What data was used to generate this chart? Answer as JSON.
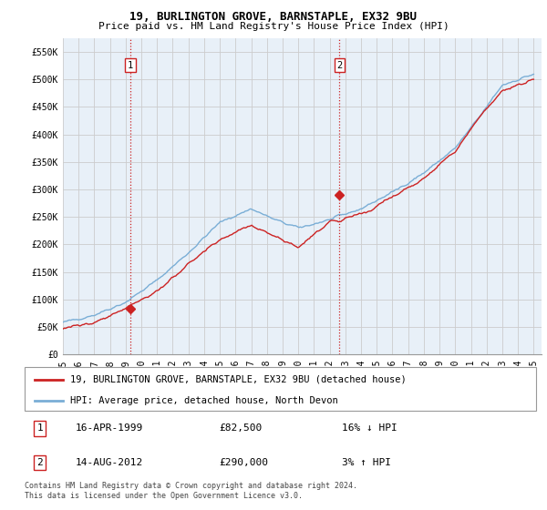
{
  "title": "19, BURLINGTON GROVE, BARNSTAPLE, EX32 9BU",
  "subtitle": "Price paid vs. HM Land Registry's House Price Index (HPI)",
  "ylabel_ticks": [
    "£0",
    "£50K",
    "£100K",
    "£150K",
    "£200K",
    "£250K",
    "£300K",
    "£350K",
    "£400K",
    "£450K",
    "£500K",
    "£550K"
  ],
  "ytick_values": [
    0,
    50000,
    100000,
    150000,
    200000,
    250000,
    300000,
    350000,
    400000,
    450000,
    500000,
    550000
  ],
  "ylim": [
    0,
    575000
  ],
  "xlim_start": 1995.0,
  "xlim_end": 2025.5,
  "xtick_years": [
    1995,
    1996,
    1997,
    1998,
    1999,
    2000,
    2001,
    2002,
    2003,
    2004,
    2005,
    2006,
    2007,
    2008,
    2009,
    2010,
    2011,
    2012,
    2013,
    2014,
    2015,
    2016,
    2017,
    2018,
    2019,
    2020,
    2021,
    2022,
    2023,
    2024,
    2025
  ],
  "hpi_color": "#7aaed6",
  "price_color": "#cc2222",
  "chart_bg": "#e8f0f8",
  "sale1_x": 1999.29,
  "sale1_y": 82500,
  "sale2_x": 2012.62,
  "sale2_y": 290000,
  "vline_color": "#cc2222",
  "legend_line1": "19, BURLINGTON GROVE, BARNSTAPLE, EX32 9BU (detached house)",
  "legend_line2": "HPI: Average price, detached house, North Devon",
  "table_row1": [
    "1",
    "16-APR-1999",
    "£82,500",
    "16% ↓ HPI"
  ],
  "table_row2": [
    "2",
    "14-AUG-2012",
    "£290,000",
    "3% ↑ HPI"
  ],
  "footnote": "Contains HM Land Registry data © Crown copyright and database right 2024.\nThis data is licensed under the Open Government Licence v3.0.",
  "bg_color": "#ffffff",
  "grid_color": "#cccccc",
  "title_fontsize": 9,
  "subtitle_fontsize": 8,
  "tick_fontsize": 7,
  "legend_fontsize": 7.5
}
